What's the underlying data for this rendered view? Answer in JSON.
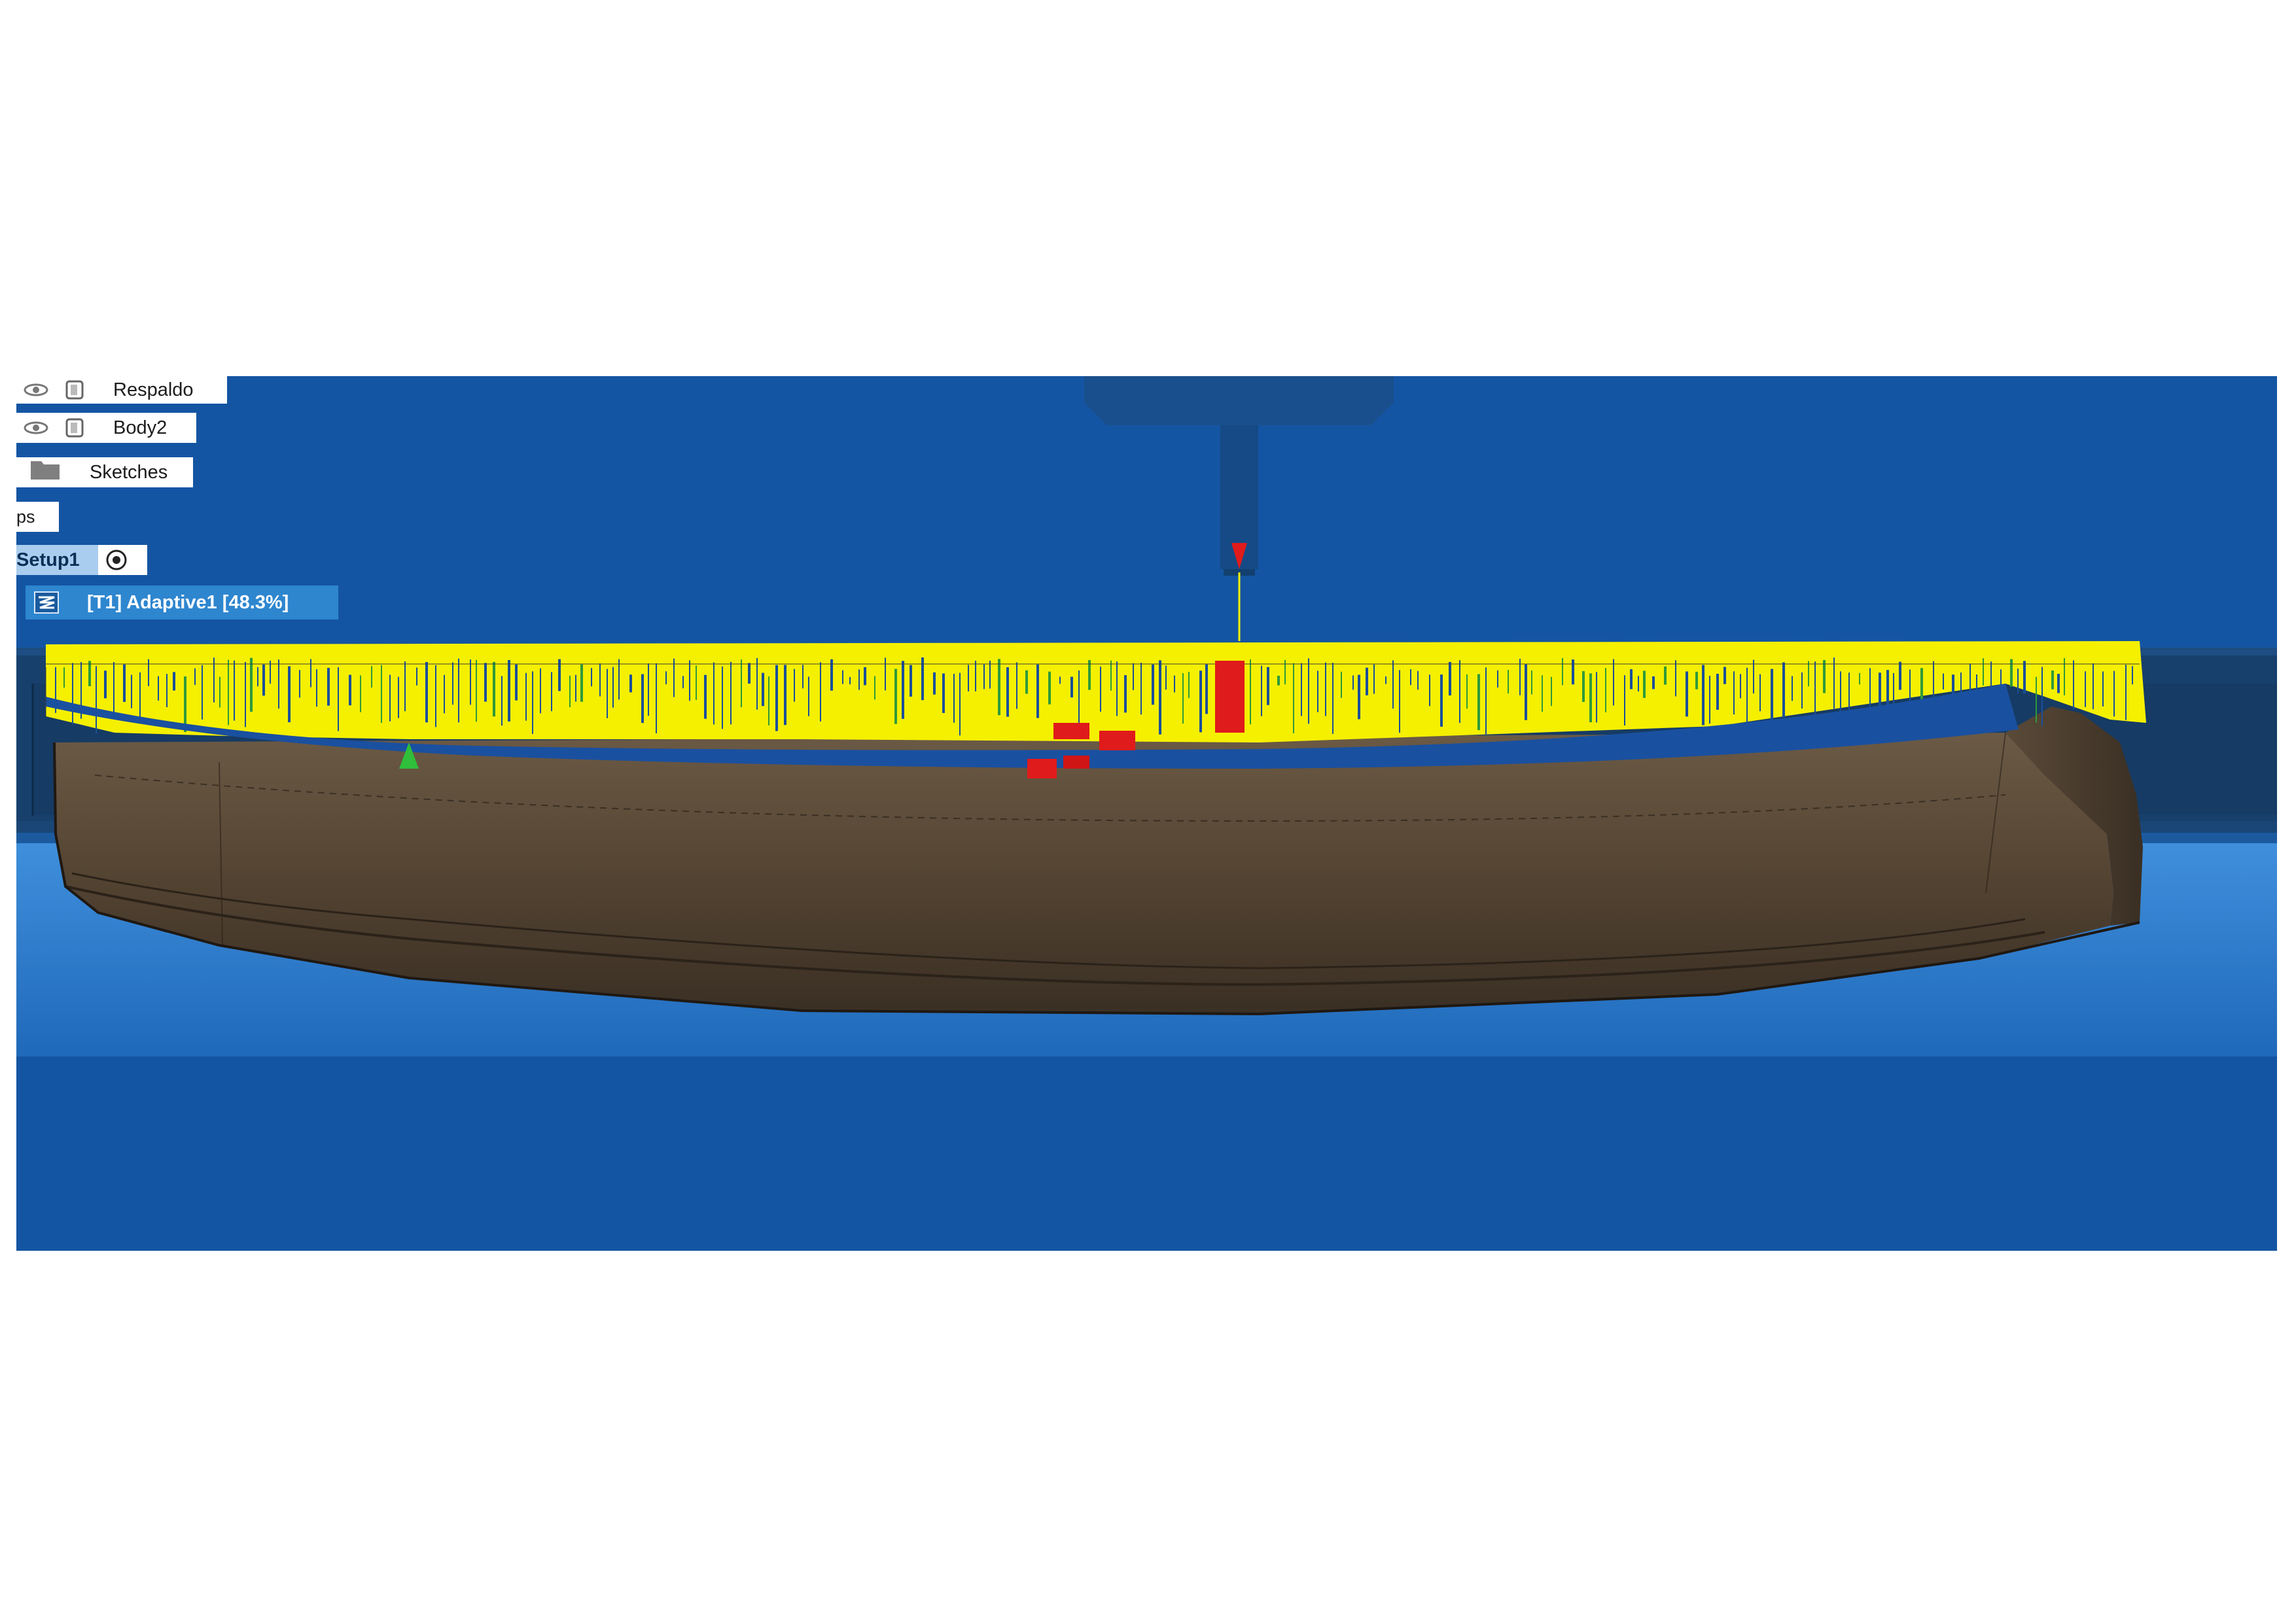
{
  "browser": {
    "rows": [
      {
        "label": "Respaldo",
        "icon": "body-icon",
        "visible_icon": "eye-icon"
      },
      {
        "label": "Body2",
        "icon": "body-icon",
        "visible_icon": "eye-icon"
      },
      {
        "label": "Sketches",
        "icon": "folder-icon"
      }
    ],
    "setups_label": "ps",
    "setup_label": "Setup1",
    "setup_icon": "target-icon",
    "operation_label": "[T1] Adaptive1 [48.3%]",
    "operation_icon": "adaptive-toolpath-icon"
  },
  "colors": {
    "background": "#1455a3",
    "toolpath": "#f5f000",
    "stock_part": "#4f4030",
    "tool_tip": "#e01b1b",
    "selection": "#2e86cf"
  }
}
